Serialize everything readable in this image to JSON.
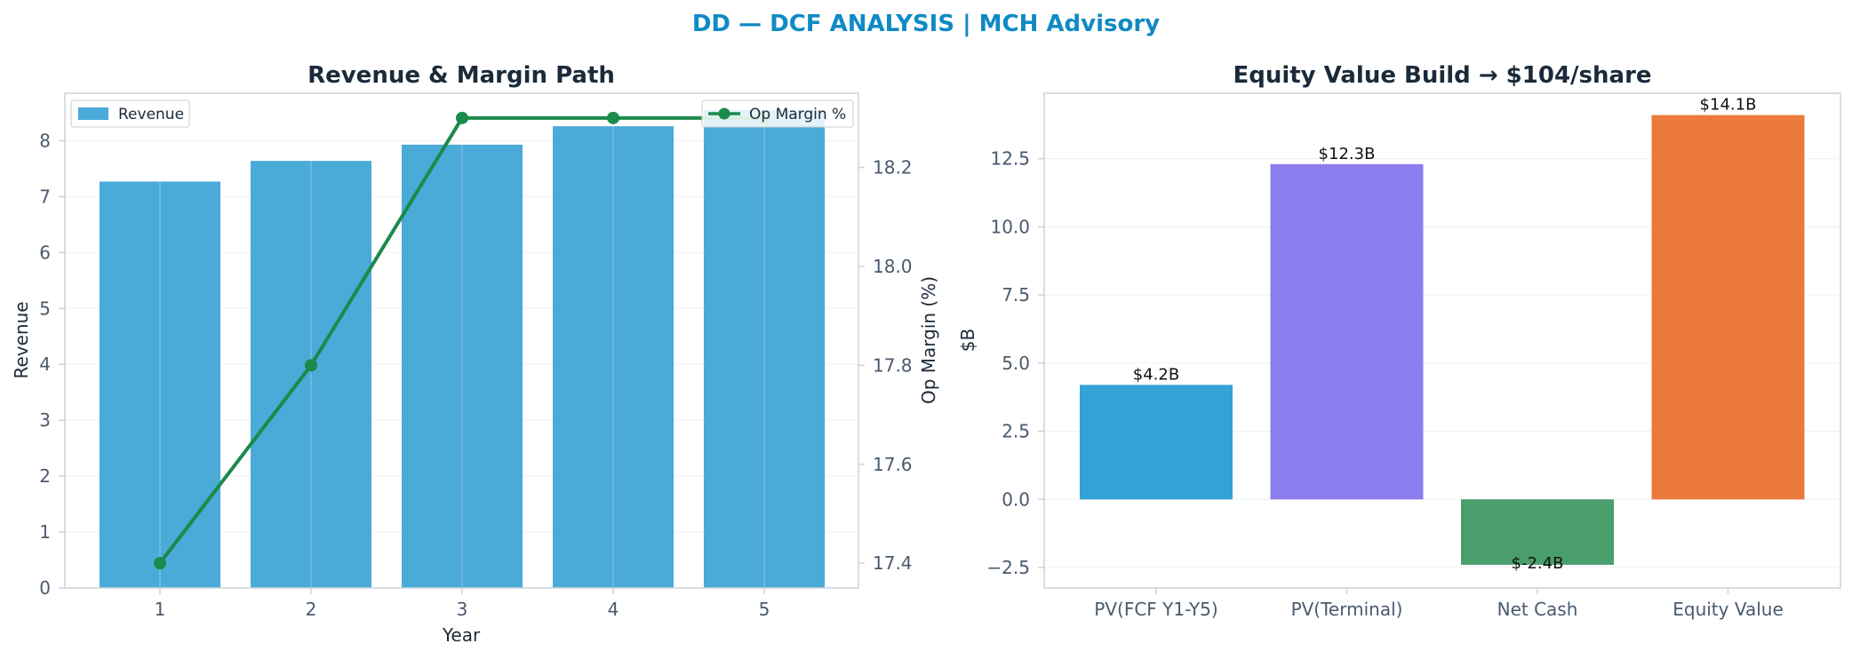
{
  "suptitle": "DD — DCF ANALYSIS | MCH Advisory",
  "colors": {
    "suptitle": "#0f8ac4",
    "title": "#1b2a3a",
    "axis_text": "#4a5a6e",
    "frame": "#ccd3dc",
    "grid": "#eef0f3",
    "revenue_bar": "#4aaad8",
    "margin_line": "#1b8a4a",
    "wf": [
      "#33a2d4",
      "#8a7dee",
      "#4a9e6b",
      "#ec7a3c"
    ]
  },
  "chart_data": [
    {
      "type": "bar",
      "title": "Revenue & Margin Path",
      "xlabel": "Year",
      "ylabel": "Revenue",
      "y2label": "Op Margin (%)",
      "categories": [
        "1",
        "2",
        "3",
        "4",
        "5"
      ],
      "ylim": [
        0,
        8.85
      ],
      "y2lim": [
        17.35,
        18.35
      ],
      "yticks": [
        "0",
        "1",
        "2",
        "3",
        "4",
        "5",
        "6",
        "7",
        "8"
      ],
      "y2ticks": [
        "17.4",
        "17.6",
        "17.8",
        "18.0",
        "18.2"
      ],
      "grid": true,
      "series": [
        {
          "name": "Revenue",
          "type": "bar",
          "axis": "left",
          "values": [
            7.27,
            7.64,
            7.93,
            8.26,
            8.55
          ]
        },
        {
          "name": "Op Margin %",
          "type": "line",
          "axis": "right",
          "values": [
            17.4,
            17.8,
            18.3,
            18.3,
            18.3
          ]
        }
      ],
      "legend": [
        {
          "label": "Revenue",
          "placement": "top-left"
        },
        {
          "label": "Op Margin %",
          "placement": "top-right"
        }
      ]
    },
    {
      "type": "bar",
      "title": "Equity Value Build → $104/share",
      "xlabel": "",
      "ylabel": "$B",
      "categories": [
        "PV(FCF Y1-Y5)",
        "PV(Terminal)",
        "Net Cash",
        "Equity Value"
      ],
      "values": [
        4.2,
        12.3,
        -2.4,
        14.1
      ],
      "data_labels": [
        "$4.2B",
        "$12.3B",
        "$-2.4B",
        "$14.1B"
      ],
      "ylim": [
        -3.25,
        14.9
      ],
      "yticks": [
        "−2.5",
        "0.0",
        "2.5",
        "5.0",
        "7.5",
        "10.0",
        "12.5"
      ],
      "grid": true
    }
  ]
}
